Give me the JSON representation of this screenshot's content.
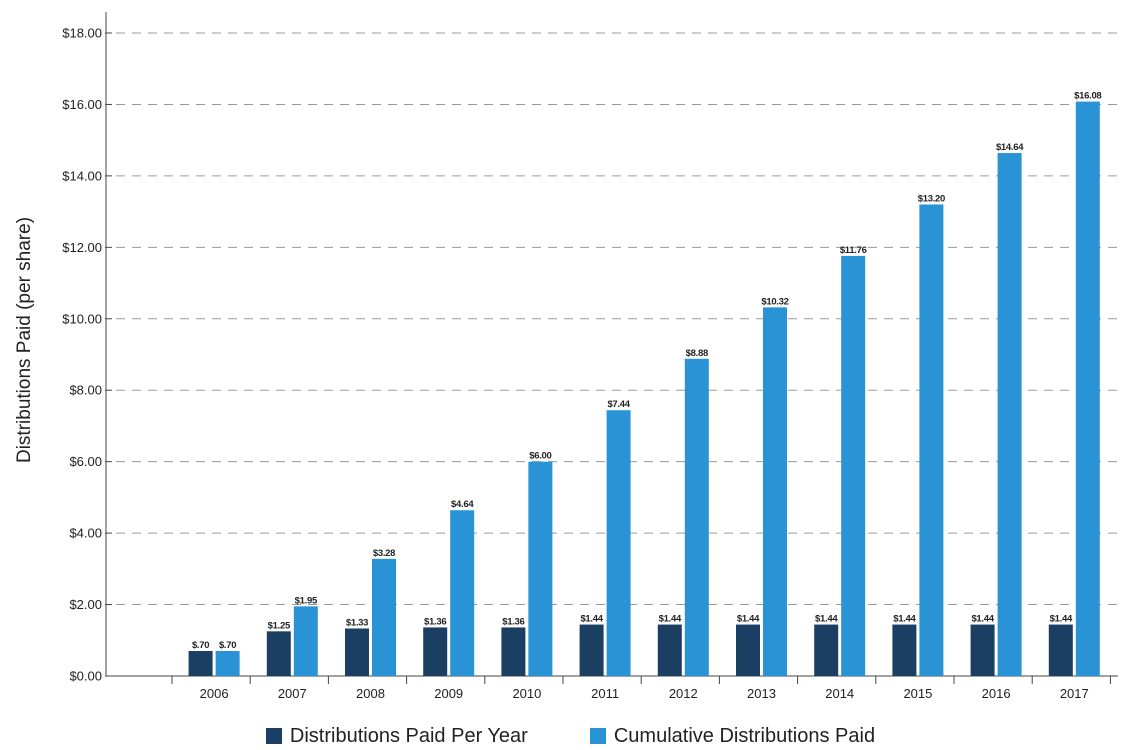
{
  "chart_data": {
    "type": "bar",
    "ylabel": "Distributions Paid (per share)",
    "xlabel": "",
    "ylim": [
      0,
      18
    ],
    "yticks": [
      "$0.00",
      "$2.00",
      "$4.00",
      "$6.00",
      "$8.00",
      "$10.00",
      "$12.00",
      "$14.00",
      "$16.00",
      "$18.00"
    ],
    "ytick_values": [
      0,
      2,
      4,
      6,
      8,
      10,
      12,
      14,
      16,
      18
    ],
    "grid": "horizontal dashed",
    "legend_position": "bottom",
    "categories": [
      "2006",
      "2007",
      "2008",
      "2009",
      "2010",
      "2011",
      "2012",
      "2013",
      "2014",
      "2015",
      "2016",
      "2017"
    ],
    "series": [
      {
        "name": "Distributions Paid Per Year",
        "color": "#1a3f63",
        "values": [
          0.7,
          1.25,
          1.33,
          1.36,
          1.36,
          1.44,
          1.44,
          1.44,
          1.44,
          1.44,
          1.44,
          1.44
        ],
        "labels": [
          "$.70",
          "$1.25",
          "$1.33",
          "$1.36",
          "$1.36",
          "$1.44",
          "$1.44",
          "$1.44",
          "$1.44",
          "$1.44",
          "$1.44",
          "$1.44"
        ]
      },
      {
        "name": "Cumulative Distributions Paid",
        "color": "#2a93d5",
        "values": [
          0.7,
          1.95,
          3.28,
          4.64,
          6.0,
          7.44,
          8.88,
          10.32,
          11.76,
          13.2,
          14.64,
          16.08
        ],
        "labels": [
          "$.70",
          "$1.95",
          "$3.28",
          "$4.64",
          "$6.00",
          "$7.44",
          "$8.88",
          "$10.32",
          "$11.76",
          "$13.20",
          "$14.64",
          "$16.08"
        ]
      }
    ]
  }
}
